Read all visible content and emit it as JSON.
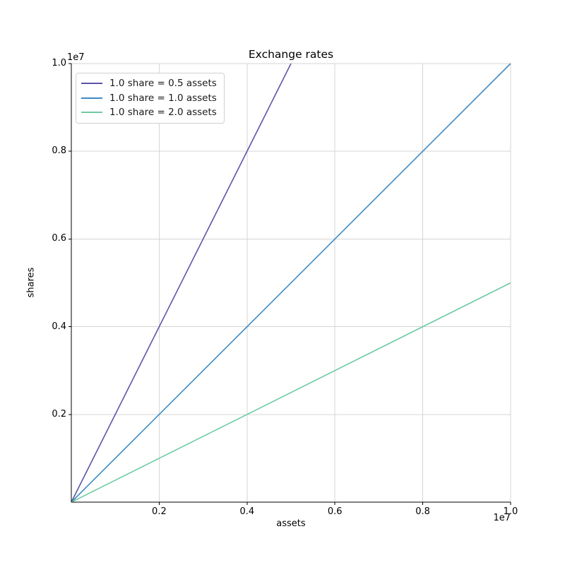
{
  "figure": {
    "background": "#ffffff"
  },
  "chart_data": {
    "type": "line",
    "title": "Exchange rates",
    "xlabel": "assets",
    "ylabel": "shares",
    "x_offset_text": "1e7",
    "y_offset_text": "1e7",
    "xlim": [
      0,
      10000000
    ],
    "ylim": [
      0,
      10000000
    ],
    "xticks": [
      2000000,
      4000000,
      6000000,
      8000000,
      10000000
    ],
    "xtick_labels": [
      "0.2",
      "0.4",
      "0.6",
      "0.8",
      "1.0"
    ],
    "yticks": [
      2000000,
      4000000,
      6000000,
      8000000,
      10000000
    ],
    "ytick_labels": [
      "0.2",
      "0.4",
      "0.6",
      "0.8",
      "1.0"
    ],
    "grid": true,
    "legend_position": "upper left",
    "series": [
      {
        "name": "1.0 share = 0.5 assets",
        "color": "#5c55a8",
        "points": [
          [
            0,
            0
          ],
          [
            5000000,
            10000000
          ]
        ]
      },
      {
        "name": "1.0 share = 1.0 assets",
        "color": "#3e8bc4",
        "points": [
          [
            0,
            0
          ],
          [
            10000000,
            10000000
          ]
        ]
      },
      {
        "name": "1.0 share = 2.0 assets",
        "color": "#6fcb9f",
        "points": [
          [
            0,
            0
          ],
          [
            10000000,
            5000000
          ]
        ]
      }
    ]
  },
  "colors": {
    "grid": "#d6d6d6",
    "axis": "#000000",
    "text": "#000000",
    "legend_border": "#d0d0d0",
    "legend_bg": "#ffffff"
  }
}
